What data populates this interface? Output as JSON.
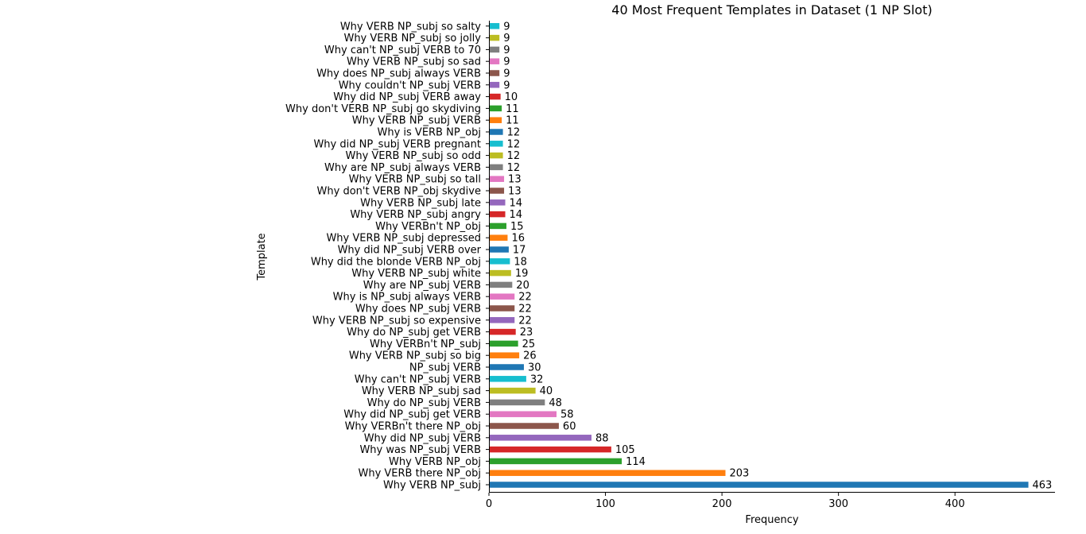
{
  "chart_data": {
    "type": "bar",
    "orientation": "horizontal",
    "title": "40 Most Frequent Templates in Dataset (1 NP Slot)",
    "xlabel": "Frequency",
    "ylabel": "Template",
    "xlim": [
      0,
      480
    ],
    "xticks": [
      "0",
      "100",
      "200",
      "300",
      "400"
    ],
    "grid": false,
    "categories": [
      "Why VERB NP_subj",
      "Why VERB there NP_obj",
      "Why VERB NP_obj",
      "Why was NP_subj VERB",
      "Why did NP_subj VERB",
      "Why VERBn't there NP_obj",
      "Why did NP_subj get VERB",
      "Why do NP_subj VERB",
      "Why VERB NP_subj sad",
      "Why can't NP_subj VERB",
      "NP_subj VERB",
      "Why VERB NP_subj so big",
      "Why VERBn't NP_subj",
      "Why do NP_subj get VERB",
      "Why VERB NP_subj so expensive",
      "Why does NP_subj VERB",
      "Why is NP_subj always VERB",
      "Why are NP_subj VERB",
      "Why VERB NP_subj white",
      "Why did the blonde VERB NP_obj",
      "Why did NP_subj VERB over",
      "Why VERB NP_subj depressed",
      "Why VERBn't NP_obj",
      "Why VERB NP_subj angry",
      "Why VERB NP_subj late",
      "Why don't VERB NP_obj skydive",
      "Why VERB NP_subj so tall",
      "Why are NP_subj always VERB",
      "Why VERB NP_subj so odd",
      "Why did NP_subj VERB pregnant",
      "Why is VERB NP_obj",
      "Why VERB NP_subj VERB",
      "Why don't VERB NP_subj go skydiving",
      "Why did NP_subj VERB away",
      "Why couldn't NP_subj VERB",
      "Why does NP_subj always VERB",
      "Why VERB NP_subj so sad",
      "Why can't NP_subj VERB to 70",
      "Why VERB NP_subj so jolly",
      "Why VERB NP_subj so salty"
    ],
    "values": [
      463,
      203,
      114,
      105,
      88,
      60,
      58,
      48,
      40,
      32,
      30,
      26,
      25,
      23,
      22,
      22,
      22,
      20,
      19,
      18,
      17,
      16,
      15,
      14,
      14,
      13,
      13,
      12,
      12,
      12,
      12,
      11,
      11,
      10,
      9,
      9,
      9,
      9,
      9,
      9
    ],
    "colors": [
      "#1f77b4",
      "#ff7f0e",
      "#2ca02c",
      "#d62728",
      "#9467bd",
      "#8c564b",
      "#e377c2",
      "#7f7f7f",
      "#bcbd22",
      "#17becf"
    ]
  }
}
